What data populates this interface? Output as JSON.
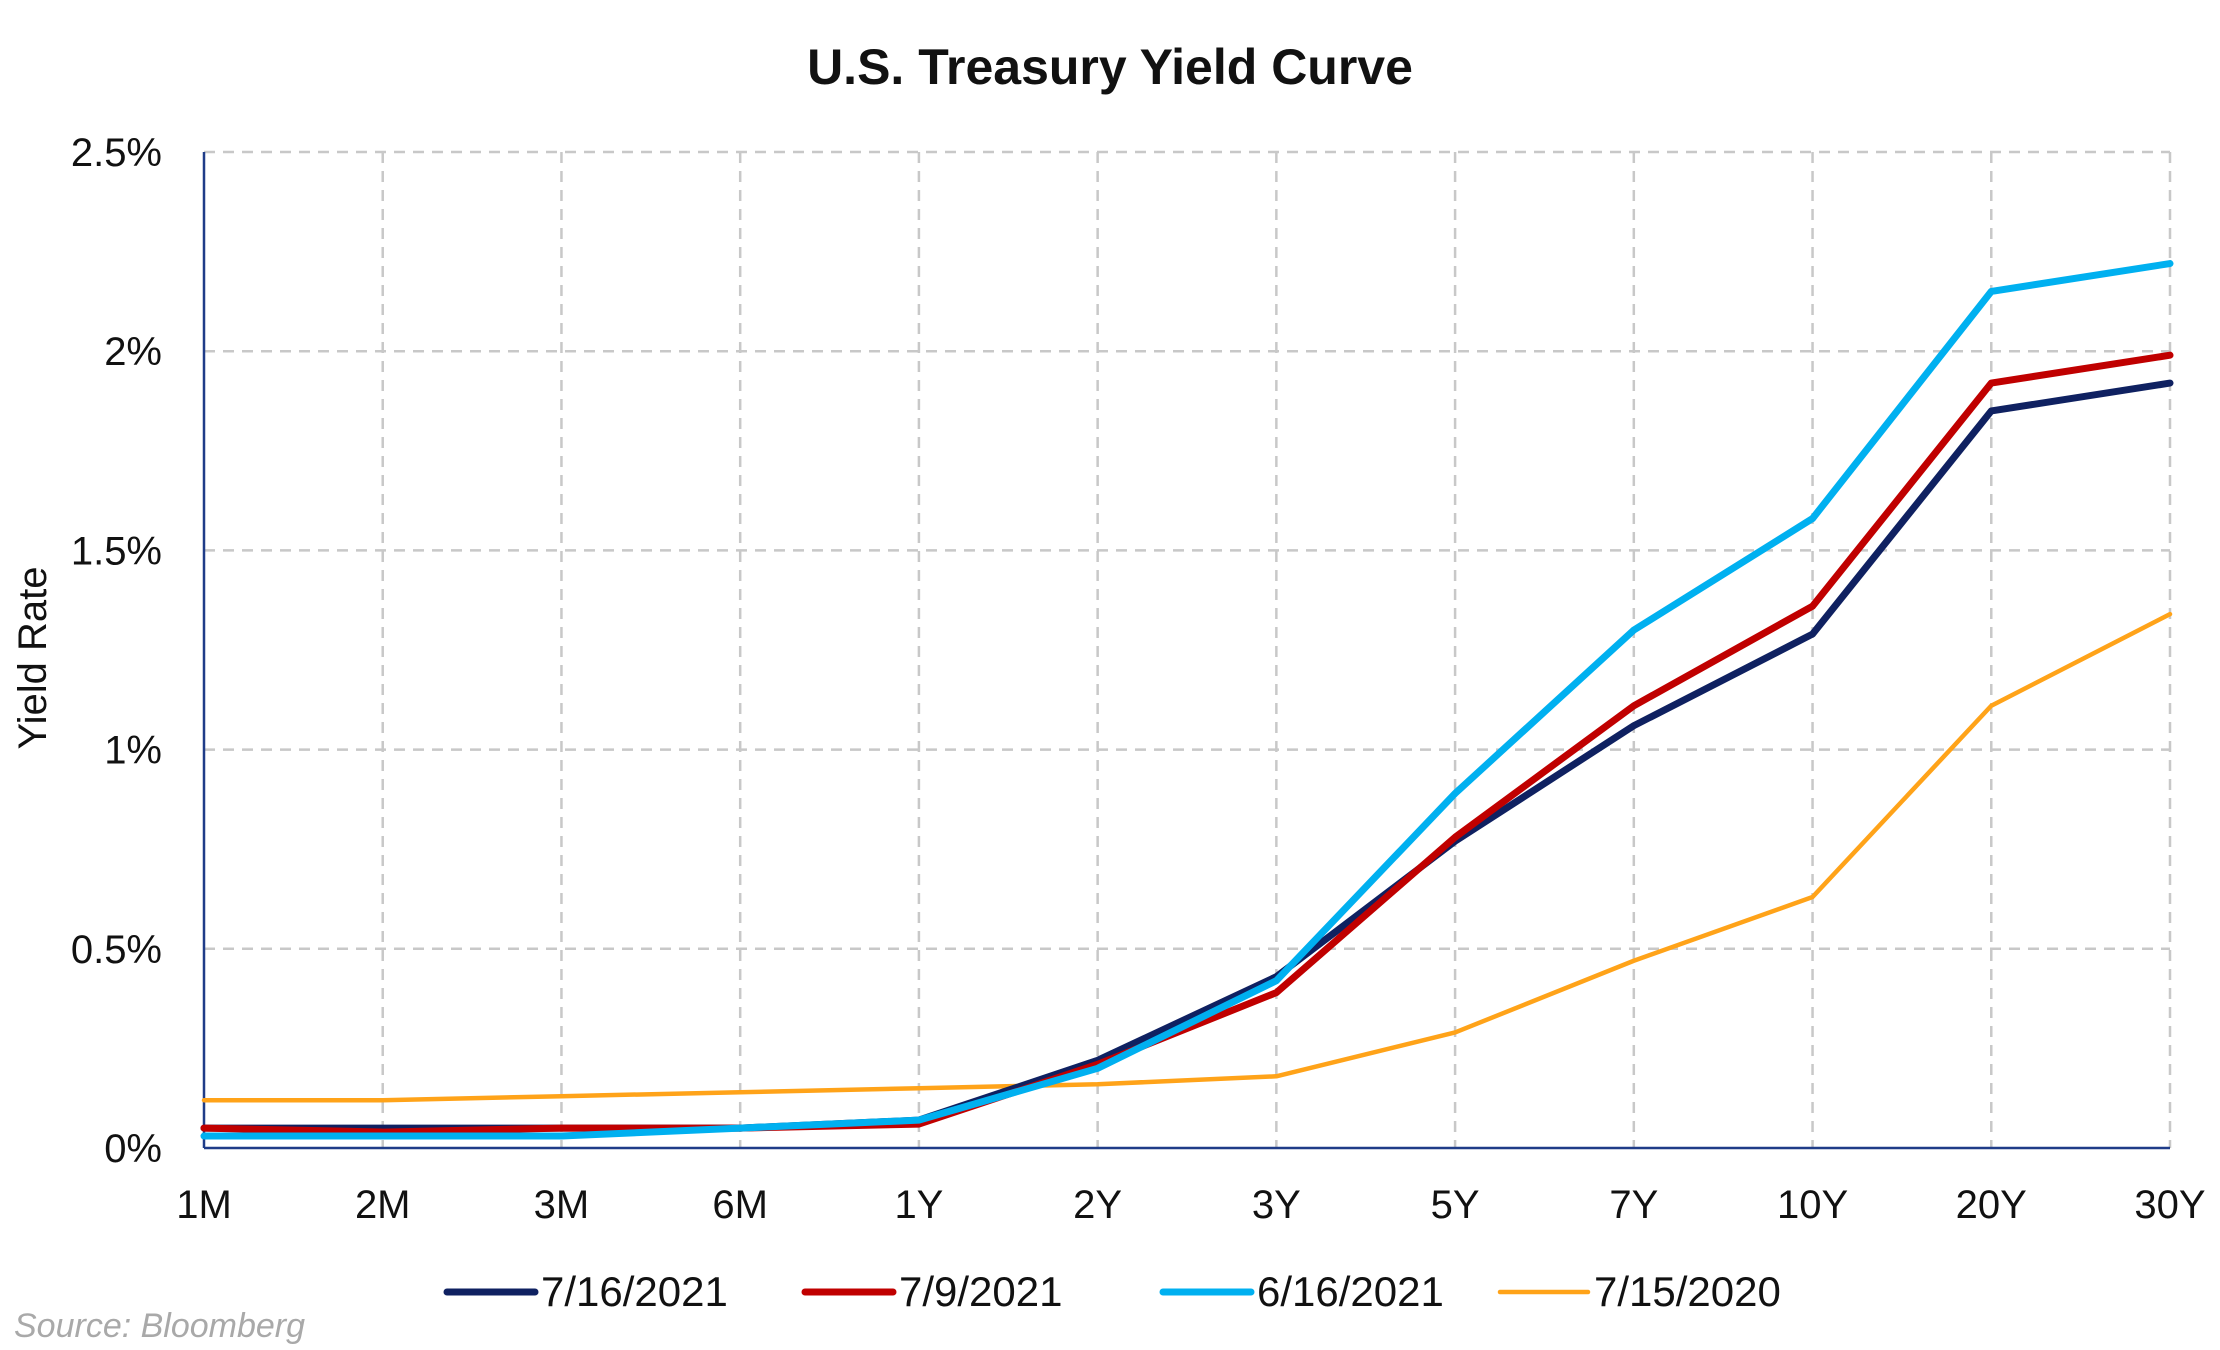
{
  "source": "Source: Bloomberg",
  "chart_data": {
    "type": "line",
    "title": "U.S. Treasury Yield Curve",
    "xlabel": "",
    "ylabel": "Yield Rate",
    "categories": [
      "1M",
      "2M",
      "3M",
      "6M",
      "1Y",
      "2Y",
      "3Y",
      "5Y",
      "7Y",
      "10Y",
      "20Y",
      "30Y"
    ],
    "ylim": [
      0,
      2.5
    ],
    "yticks": [
      0,
      0.5,
      1,
      1.5,
      2,
      2.5
    ],
    "ytick_labels": [
      "0%",
      "0.5%",
      "1%",
      "1.5%",
      "2%",
      "2.5%"
    ],
    "grid": true,
    "legend_position": "bottom",
    "series": [
      {
        "name": "7/16/2021",
        "color": "#0f2161",
        "values": [
          0.05,
          0.05,
          0.05,
          0.05,
          0.07,
          0.22,
          0.43,
          0.77,
          1.06,
          1.29,
          1.85,
          1.92
        ]
      },
      {
        "name": "7/9/2021",
        "color": "#c00000",
        "values": [
          0.05,
          0.04,
          0.05,
          0.05,
          0.06,
          0.21,
          0.39,
          0.78,
          1.11,
          1.36,
          1.92,
          1.99
        ]
      },
      {
        "name": "6/16/2021",
        "color": "#00b0f0",
        "values": [
          0.03,
          0.03,
          0.03,
          0.05,
          0.07,
          0.2,
          0.42,
          0.89,
          1.3,
          1.58,
          2.15,
          2.22
        ]
      },
      {
        "name": "7/15/2020",
        "color": "#ffa319",
        "values": [
          0.12,
          0.12,
          0.13,
          0.14,
          0.15,
          0.16,
          0.18,
          0.29,
          0.47,
          0.63,
          1.11,
          1.34
        ]
      }
    ]
  }
}
